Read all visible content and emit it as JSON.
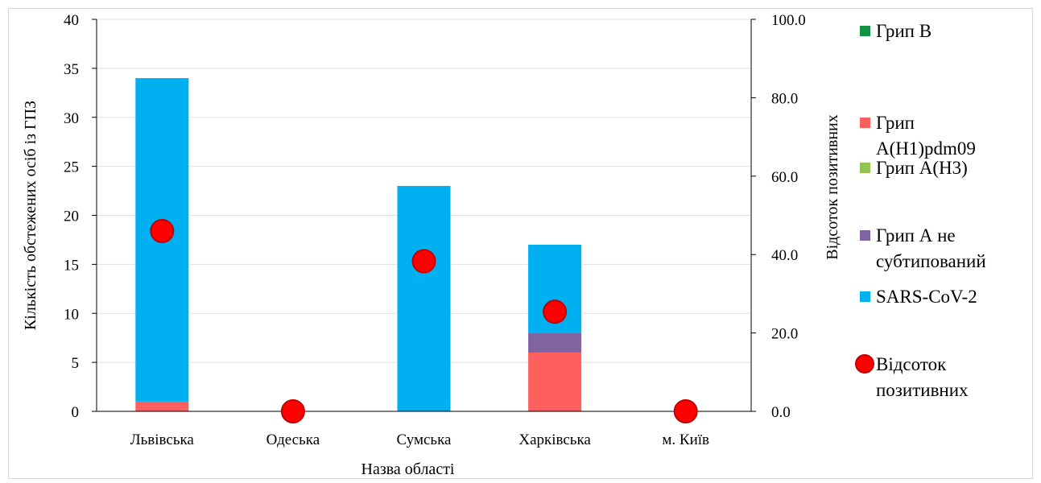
{
  "chart_data": {
    "type": "bar",
    "stacked": true,
    "categories": [
      "Львівська",
      "Одеська",
      "Сумська",
      "Харківська",
      "м. Київ"
    ],
    "series": [
      {
        "name": "Грип B",
        "color": "#119244",
        "values": [
          0,
          0,
          0,
          0,
          0
        ]
      },
      {
        "name": "Грип A(H1)pdm09",
        "color": "#ff5f5f",
        "values": [
          1,
          0,
          0,
          6,
          0
        ]
      },
      {
        "name": "Грип A(H3)",
        "color": "#92c353",
        "values": [
          0,
          0,
          0,
          0,
          0
        ]
      },
      {
        "name": "Грип А не субтипований",
        "color": "#8064a2",
        "values": [
          0,
          0,
          0,
          2,
          0
        ]
      },
      {
        "name": "SARS-CoV-2",
        "color": "#00b0f0",
        "values": [
          33,
          0,
          23,
          9,
          0
        ]
      }
    ],
    "secondary_series": {
      "name": "Відсоток позитивних",
      "type": "scatter",
      "axis": "right",
      "color": "#ff0000",
      "values": [
        46.0,
        0.0,
        38.3,
        25.4,
        0.0
      ]
    },
    "xlabel": "Назва області",
    "ylabel": "Кількість обстежених осіб із ГПЗ",
    "y2label": "Відсоток позитивних",
    "ylim": [
      0,
      40
    ],
    "yticks": [
      "0",
      "5",
      "10",
      "15",
      "20",
      "25",
      "30",
      "35",
      "40"
    ],
    "y2lim": [
      0,
      100
    ],
    "y2ticks": [
      "0.0",
      "20.0",
      "40.0",
      "60.0",
      "80.0",
      "100.0"
    ],
    "grid": true,
    "legend_position": "right",
    "legend": [
      {
        "lines": [
          "Грип B"
        ],
        "color": "#119244",
        "marker": "square"
      },
      {
        "lines": [
          "Грип",
          "A(H1)pdm09"
        ],
        "color": "#ff5f5f",
        "marker": "square"
      },
      {
        "lines": [
          "Грип A(H3)"
        ],
        "color": "#92c353",
        "marker": "square"
      },
      {
        "lines": [
          "Грип А не",
          "субтипований"
        ],
        "color": "#8064a2",
        "marker": "square"
      },
      {
        "lines": [
          "SARS-CoV-2"
        ],
        "color": "#00b0f0",
        "marker": "square"
      },
      {
        "lines": [
          "Відсоток",
          "позитивних"
        ],
        "color": "#ff0000",
        "marker": "circle"
      }
    ]
  }
}
